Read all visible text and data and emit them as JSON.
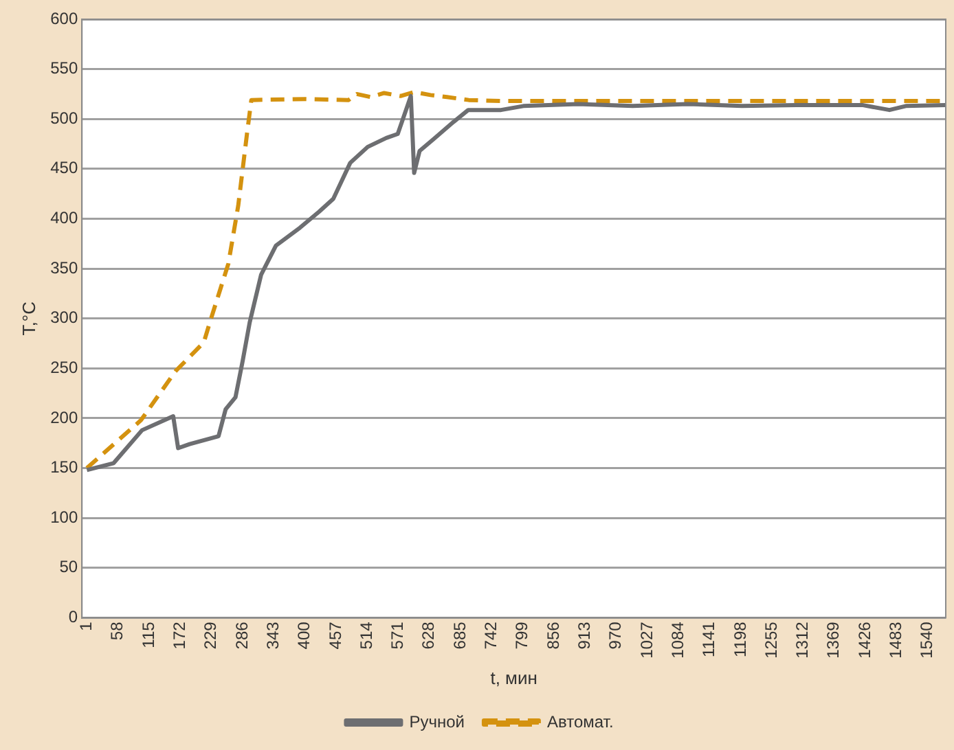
{
  "chart_data": {
    "type": "line",
    "xlabel": "t, мин",
    "ylabel": "T,°C",
    "xlim": [
      -8,
      1573
    ],
    "xticks": [
      1,
      58,
      115,
      172,
      229,
      286,
      343,
      400,
      457,
      514,
      571,
      628,
      685,
      742,
      799,
      856,
      913,
      970,
      1027,
      1084,
      1141,
      1198,
      1255,
      1312,
      1369,
      1426,
      1483,
      1540
    ],
    "ylim": [
      0,
      600
    ],
    "yticks": [
      0,
      50,
      100,
      150,
      200,
      250,
      300,
      350,
      400,
      450,
      500,
      550,
      600
    ],
    "grid": "y",
    "legend": "bottom",
    "marker": "none",
    "series": [
      {
        "name": "Ручной",
        "color": "#6d6e71",
        "line_style": "solid",
        "x": [
          1,
          50,
          102,
          159,
          168,
          189,
          242,
          255,
          273,
          286,
          299,
          320,
          347,
          391,
          426,
          452,
          483,
          515,
          549,
          570,
          594,
          600,
          610,
          636,
          672,
          699,
          759,
          800,
          900,
          1000,
          1100,
          1200,
          1300,
          1420,
          1470,
          1500,
          1572
        ],
        "values": [
          148,
          155,
          188,
          202,
          170,
          174,
          182,
          209,
          221,
          257,
          296,
          344,
          373,
          391,
          407,
          420,
          456,
          472,
          481,
          485,
          523,
          446,
          468,
          480,
          497,
          509,
          509,
          513,
          515,
          513,
          515,
          513,
          514,
          514,
          509,
          513,
          514
        ]
      },
      {
        "name": "Автомат.",
        "color": "#d4920f",
        "line_style": "dashed",
        "x": [
          1,
          100,
          163,
          215,
          226,
          260,
          278,
          294,
          302,
          400,
          480,
          495,
          520,
          545,
          575,
          600,
          630,
          660,
          700,
          760,
          1000,
          1300,
          1572
        ],
        "values": [
          150,
          198,
          247,
          276,
          296,
          355,
          413,
          485,
          519,
          520,
          519,
          525,
          522,
          526,
          523,
          527,
          524,
          522,
          519,
          518,
          518,
          518,
          518
        ]
      }
    ]
  }
}
